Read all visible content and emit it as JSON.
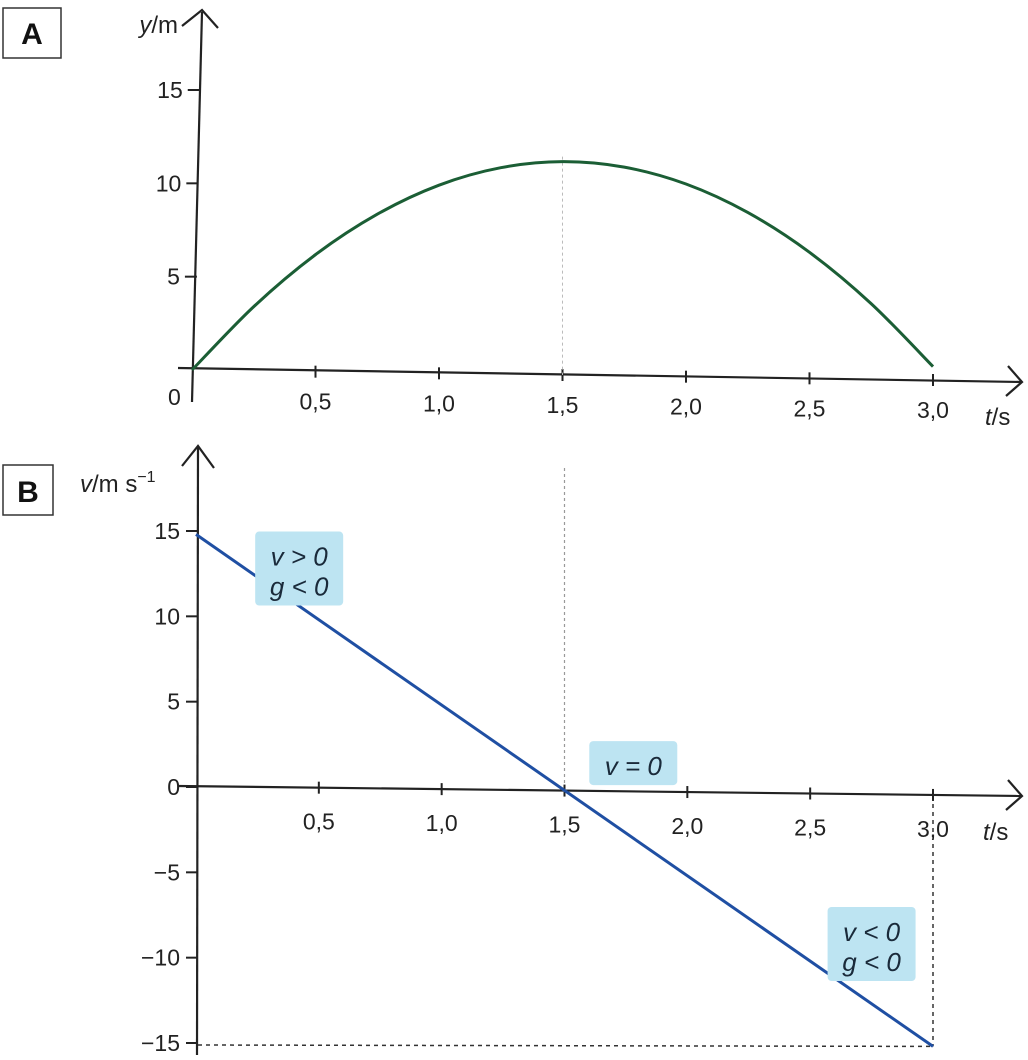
{
  "chart_data": [
    {
      "panel": "A",
      "type": "line",
      "title": "",
      "xlabel_var": "t",
      "xlabel_unit": "/s",
      "ylabel_var": "y",
      "ylabel_unit": "/m",
      "xlim": [
        0,
        3.0
      ],
      "ylim": [
        0,
        15
      ],
      "x_ticks": [
        "0,5",
        "1,0",
        "1,5",
        "2,0",
        "2,5",
        "3,0"
      ],
      "x_tick_values": [
        0.5,
        1.0,
        1.5,
        2.0,
        2.5,
        3.0
      ],
      "y_ticks": [
        "5",
        "10",
        "15"
      ],
      "y_tick_values": [
        5,
        10,
        15
      ],
      "origin_label": "0",
      "grid": false,
      "series": [
        {
          "color": "#1b5e35",
          "x": [
            0,
            0.25,
            0.5,
            0.75,
            1.0,
            1.25,
            1.5,
            1.75,
            2.0,
            2.25,
            2.5,
            2.75,
            3.0
          ],
          "y": [
            0,
            3.44,
            6.27,
            8.48,
            10.08,
            11.06,
            11.43,
            11.18,
            10.32,
            8.84,
            6.75,
            4.04,
            0.72
          ]
        }
      ],
      "guide_lines": [
        {
          "x": 1.5
        }
      ]
    },
    {
      "panel": "B",
      "type": "line",
      "title": "",
      "xlabel_var": "t",
      "xlabel_unit": "/s",
      "ylabel_var": "v",
      "ylabel_unit": "/m s",
      "ylabel_sup": "−1",
      "xlim": [
        0,
        3.0
      ],
      "ylim": [
        -15,
        15
      ],
      "x_ticks": [
        "0,5",
        "1,0",
        "1,5",
        "2,0",
        "2,5",
        "3,0"
      ],
      "x_tick_values": [
        0.5,
        1.0,
        1.5,
        2.0,
        2.5,
        3.0
      ],
      "y_ticks": [
        "15",
        "10",
        "5",
        "0",
        "−5",
        "−10",
        "−15"
      ],
      "y_tick_values": [
        15,
        10,
        5,
        0,
        -5,
        -10,
        -15
      ],
      "grid": false,
      "series": [
        {
          "color": "#1f4fa3",
          "x": [
            0,
            3.0
          ],
          "y": [
            14.8,
            -15.2
          ]
        }
      ],
      "guide_lines": [
        {
          "x": 1.5
        },
        {
          "x": 3.0,
          "y": -15.2
        }
      ],
      "annotations": [
        {
          "lines": [
            "v > 0",
            "g < 0"
          ],
          "x": 0.42,
          "y": 12.8
        },
        {
          "lines": [
            "v = 0"
          ],
          "x": 1.78,
          "y": 1.4
        },
        {
          "lines": [
            "v < 0",
            "g < 0"
          ],
          "x": 2.75,
          "y": -9.2
        }
      ]
    }
  ],
  "colors": {
    "axis": "#222222",
    "curve_a": "#1b5e35",
    "line_b": "#1f4fa3",
    "annotation_bg": "#bde4f2"
  }
}
